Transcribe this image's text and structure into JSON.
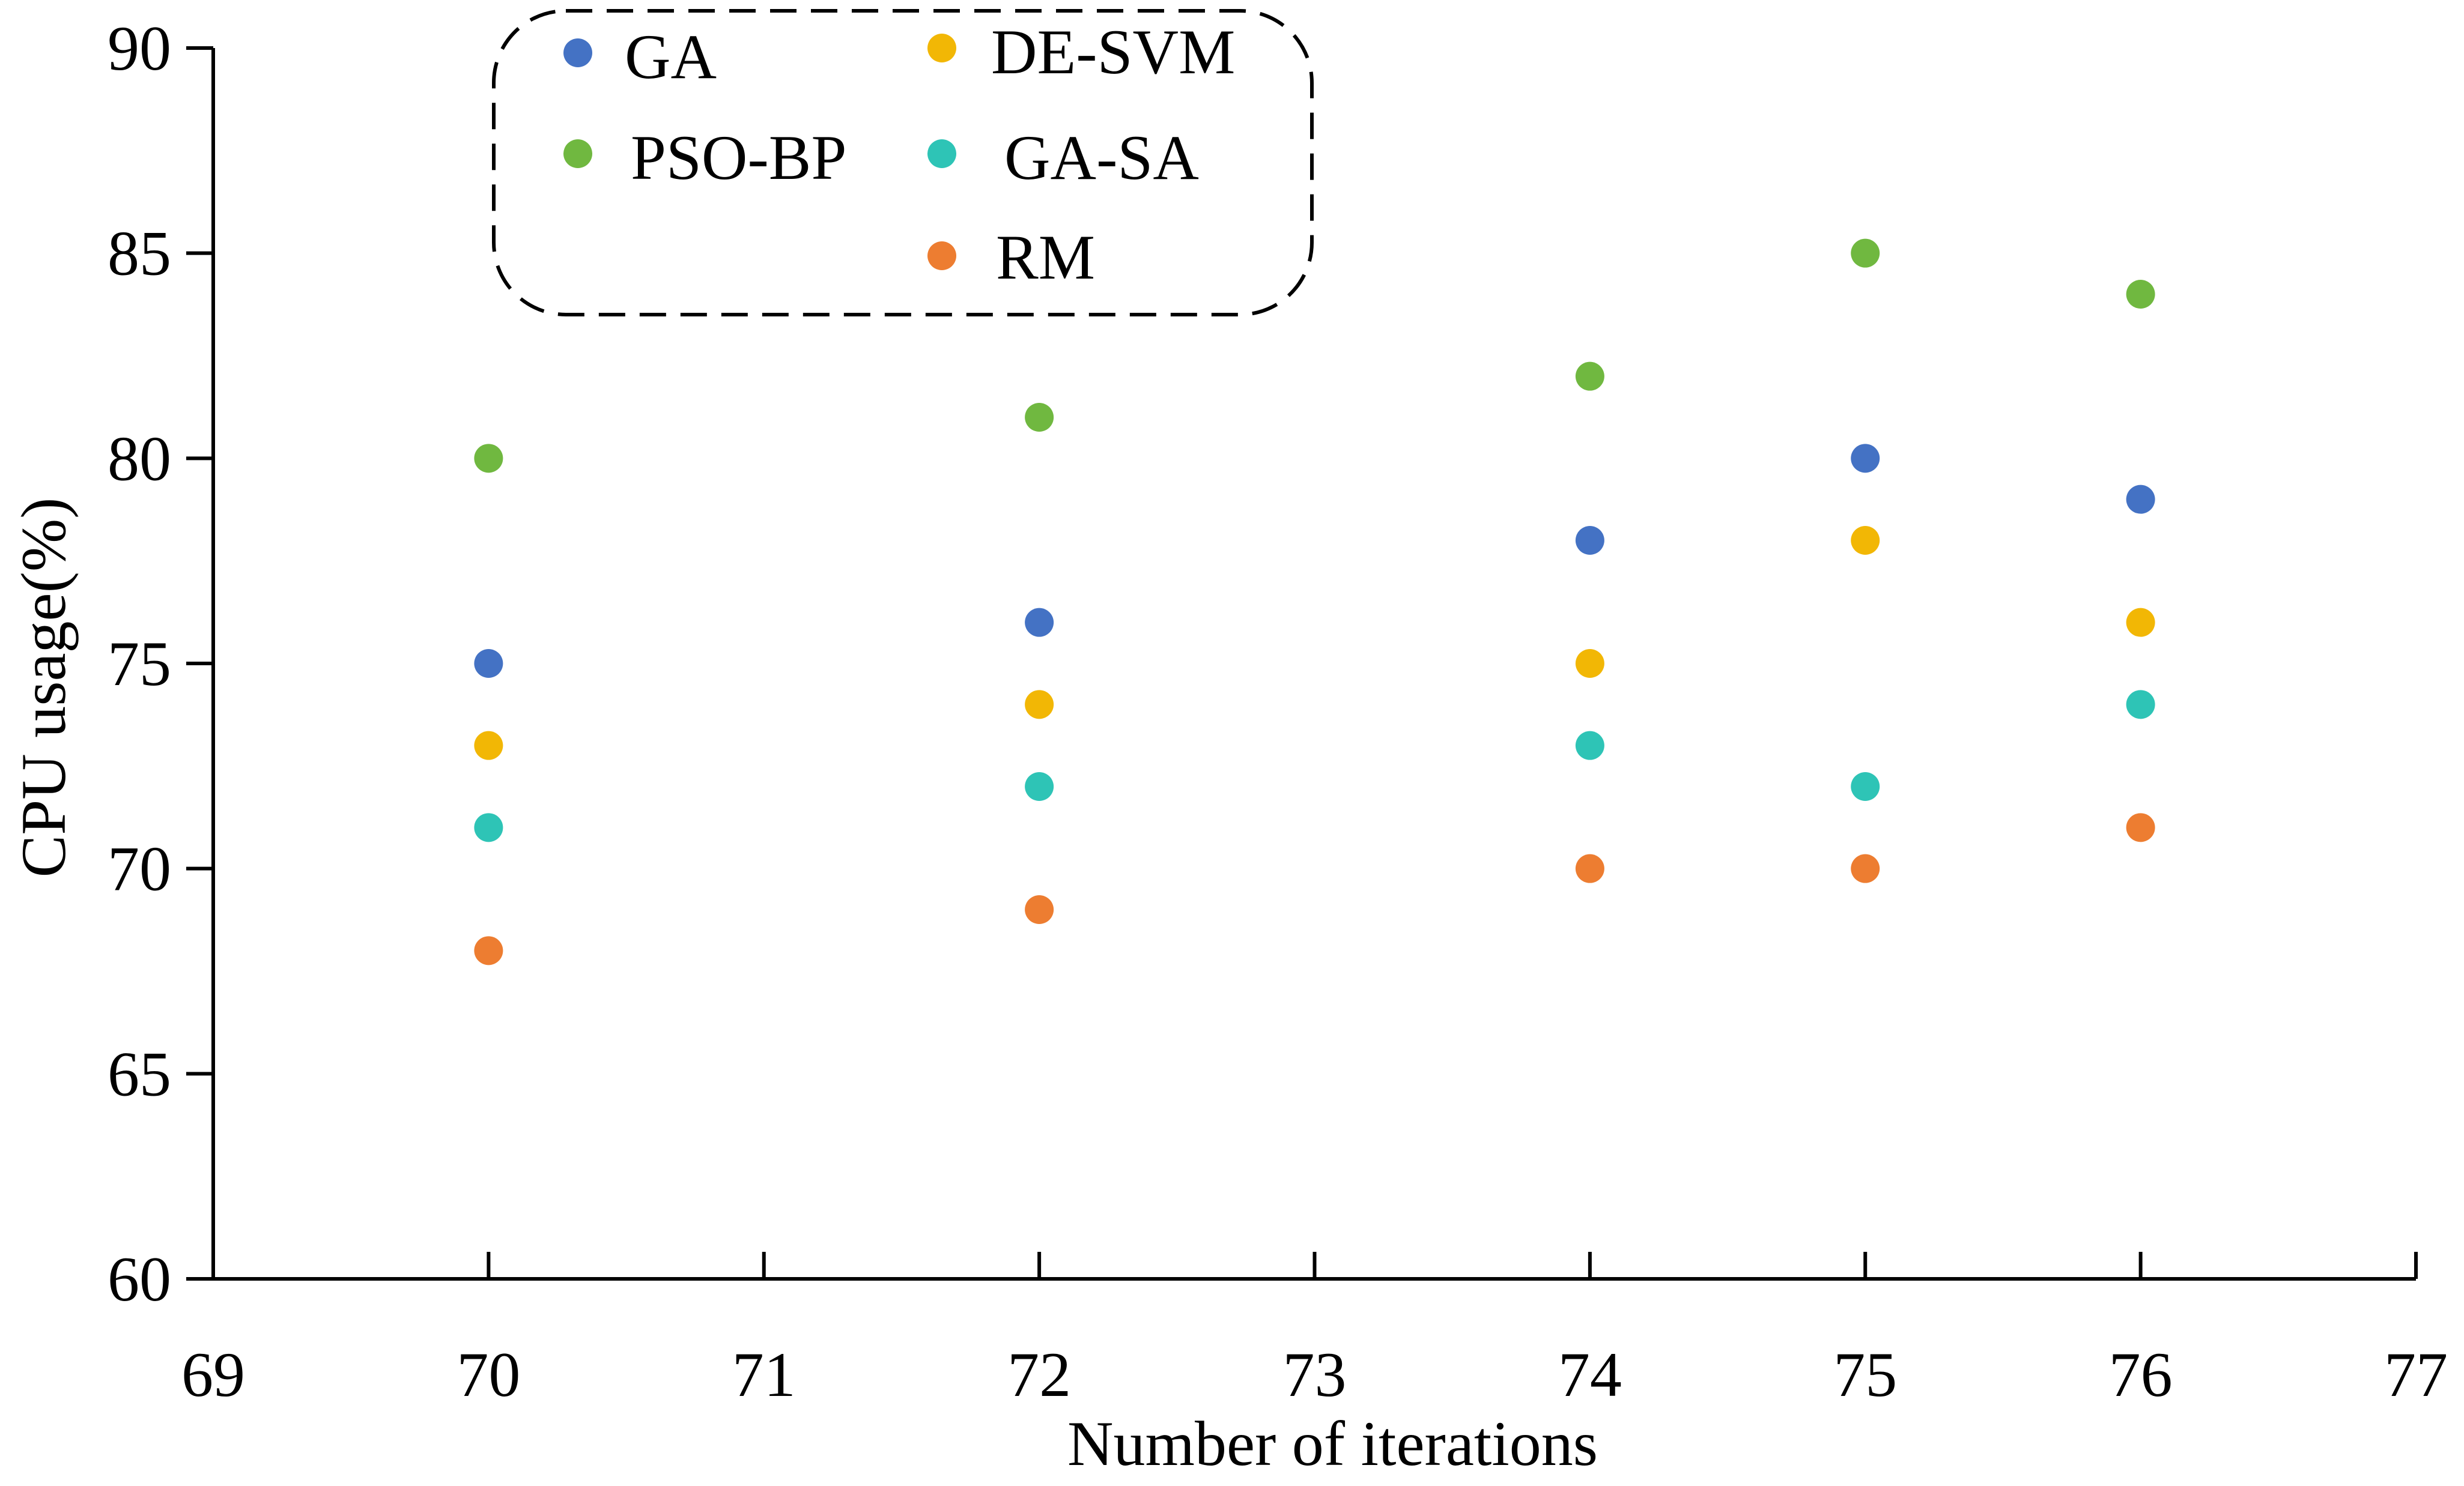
{
  "chart_data": {
    "type": "scatter",
    "xlabel": "Number of iterations",
    "ylabel": "CPU usage(%)",
    "xlim": [
      69,
      77
    ],
    "ylim": [
      60,
      90
    ],
    "x_ticks": [
      "69",
      "70",
      "71",
      "72",
      "73",
      "74",
      "75",
      "76",
      "77"
    ],
    "y_ticks": [
      "60",
      "65",
      "70",
      "75",
      "80",
      "85",
      "90"
    ],
    "grid": false,
    "legend": {
      "placement": "top-left",
      "border": "dashed"
    },
    "x": [
      70,
      72,
      74,
      75,
      76
    ],
    "series": [
      {
        "name": "GA",
        "color": "#4472C4",
        "values": [
          75,
          76,
          78,
          80,
          79
        ]
      },
      {
        "name": "DE-SVM",
        "color": "#F2B705",
        "values": [
          73,
          74,
          75,
          78,
          76
        ]
      },
      {
        "name": "PSO-BP",
        "color": "#70B840",
        "values": [
          80,
          81,
          82,
          85,
          84
        ]
      },
      {
        "name": "GA-SA",
        "color": "#2EC4B6",
        "values": [
          71,
          72,
          73,
          72,
          74
        ]
      },
      {
        "name": "RM",
        "color": "#ED7D31",
        "values": [
          68,
          69,
          70,
          70,
          71
        ]
      }
    ]
  }
}
